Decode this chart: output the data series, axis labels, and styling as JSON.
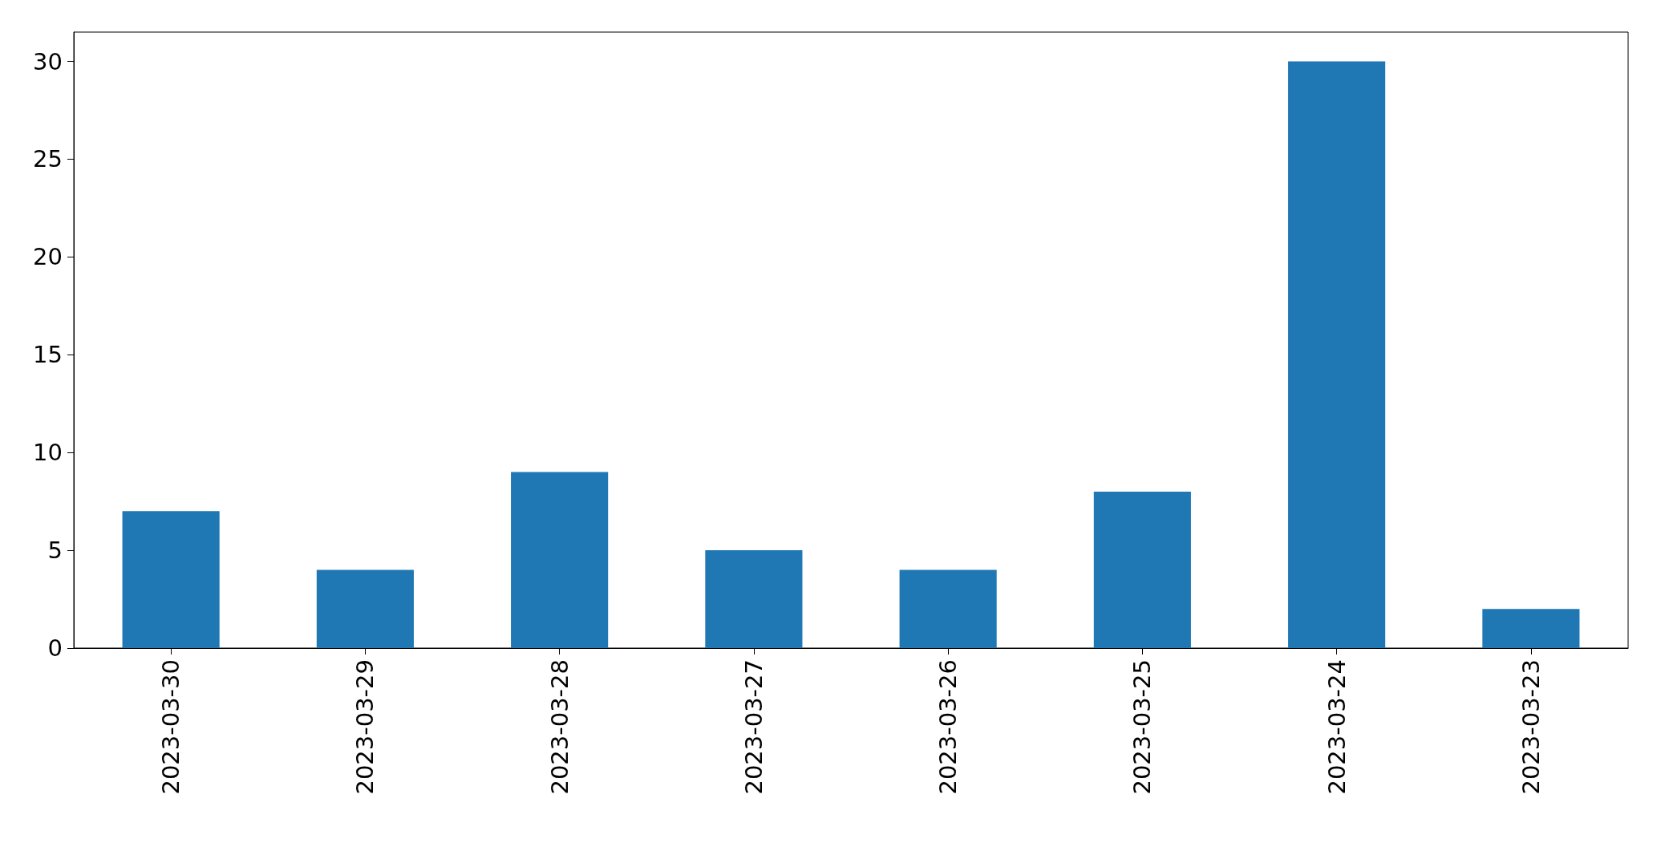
{
  "chart_data": {
    "type": "bar",
    "categories": [
      "2023-03-30",
      "2023-03-29",
      "2023-03-28",
      "2023-03-27",
      "2023-03-26",
      "2023-03-25",
      "2023-03-24",
      "2023-03-23"
    ],
    "values": [
      7,
      4,
      9,
      5,
      4,
      8,
      30,
      2
    ],
    "color": "#1f77b4",
    "ylim": [
      0,
      31.5
    ],
    "yticks": [
      0,
      5,
      10,
      15,
      20,
      25,
      30
    ],
    "grid": false
  }
}
